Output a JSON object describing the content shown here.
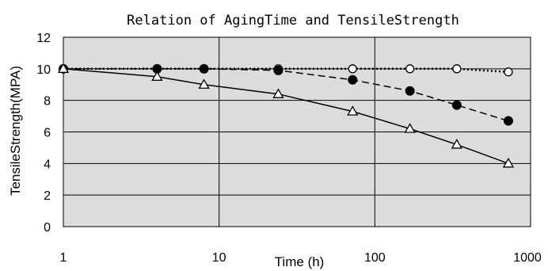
{
  "chart_data": {
    "type": "line",
    "title": "Relation of AgingTime and TensileStrength",
    "xlabel": "Time (h)",
    "ylabel": "TensileStrength(MPA)",
    "xscale": "log",
    "xlim": [
      1,
      1000
    ],
    "ylim": [
      0,
      12
    ],
    "xticks": [
      1,
      10,
      100,
      1000
    ],
    "yticks": [
      0,
      2,
      4,
      6,
      8,
      10,
      12
    ],
    "grid": "horizontal and decade vertical lines",
    "plot_background": "#dcdcdc",
    "series": [
      {
        "style": "dotted",
        "marker": "circle-open",
        "color": "#000000",
        "x": [
          1,
          4,
          8,
          24,
          72,
          168,
          336,
          720
        ],
        "y": [
          10,
          10,
          10,
          10,
          10,
          10,
          10,
          9.8
        ]
      },
      {
        "style": "dashed",
        "marker": "circle-filled",
        "color": "#000000",
        "x": [
          1,
          4,
          8,
          24,
          72,
          168,
          336,
          720
        ],
        "y": [
          10,
          10,
          10,
          9.9,
          9.3,
          8.6,
          7.7,
          6.7
        ]
      },
      {
        "style": "solid",
        "marker": "triangle-open",
        "color": "#000000",
        "x": [
          1,
          4,
          8,
          24,
          72,
          168,
          336,
          720
        ],
        "y": [
          10,
          9.5,
          9.0,
          8.4,
          7.3,
          6.2,
          5.2,
          4.0
        ]
      }
    ]
  }
}
